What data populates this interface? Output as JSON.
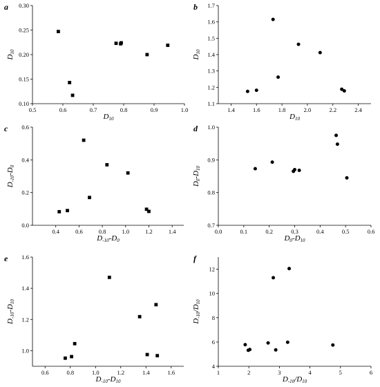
{
  "chart_data": [
    {
      "panel": "a",
      "type": "scatter",
      "marker": "square",
      "xlabel": {
        "main": "D",
        "sub": "10"
      },
      "ylabel": {
        "main": "D",
        "sub": "10"
      },
      "xlim": [
        0.5,
        1.0
      ],
      "ylim": [
        0.1,
        0.3
      ],
      "xticks": [
        "0.5",
        "0.6",
        "0.7",
        "0.8",
        "0.9",
        "1.0"
      ],
      "yticks": [
        "0.10",
        "0.15",
        "0.20",
        "0.25",
        "0.30"
      ],
      "points": [
        [
          0.585,
          0.247
        ],
        [
          0.622,
          0.143
        ],
        [
          0.632,
          0.117
        ],
        [
          0.775,
          0.223
        ],
        [
          0.79,
          0.222
        ],
        [
          0.792,
          0.224
        ],
        [
          0.877,
          0.2
        ],
        [
          0.945,
          0.219
        ]
      ]
    },
    {
      "panel": "b",
      "type": "scatter",
      "marker": "circle",
      "xlabel": {
        "main": "D",
        "sub": "10"
      },
      "ylabel": {
        "main": "D",
        "sub": "10"
      },
      "xlim": [
        1.3,
        2.5
      ],
      "ylim": [
        1.1,
        1.7
      ],
      "xticks": [
        "1.4",
        "1.6",
        "1.8",
        "2.0",
        "2.2",
        "2.4"
      ],
      "yticks": [
        "1.1",
        "1.2",
        "1.3",
        "1.4",
        "1.5",
        "1.6",
        "1.7"
      ],
      "points": [
        [
          1.53,
          1.175
        ],
        [
          1.6,
          1.182
        ],
        [
          1.73,
          1.615
        ],
        [
          1.77,
          1.262
        ],
        [
          1.93,
          1.463
        ],
        [
          2.1,
          1.412
        ],
        [
          2.27,
          1.188
        ],
        [
          2.29,
          1.178
        ]
      ]
    },
    {
      "panel": "c",
      "type": "scatter",
      "marker": "square",
      "xlabel": {
        "main": "D",
        "sub": "-10",
        "mid": "-D",
        "sub2": "0"
      },
      "ylabel": {
        "main": "D",
        "sub": "-10",
        "mid": "-D",
        "sub2": "0"
      },
      "xlim": [
        0.2,
        1.5
      ],
      "ylim": [
        0.0,
        0.6
      ],
      "xticks": [
        "0.4",
        "0.6",
        "0.8",
        "1.0",
        "1.2",
        "1.4"
      ],
      "yticks": [
        "0.0",
        "0.2",
        "0.4",
        "0.6"
      ],
      "points": [
        [
          0.43,
          0.083
        ],
        [
          0.5,
          0.09
        ],
        [
          0.64,
          0.52
        ],
        [
          0.69,
          0.17
        ],
        [
          0.84,
          0.37
        ],
        [
          1.02,
          0.32
        ],
        [
          1.18,
          0.098
        ],
        [
          1.2,
          0.085
        ]
      ]
    },
    {
      "panel": "d",
      "type": "scatter",
      "marker": "circle",
      "xlabel": {
        "main": "D",
        "sub": "0",
        "mid": "-D",
        "sub2": "10"
      },
      "ylabel": {
        "main": "D",
        "sub": "0",
        "mid": "-D",
        "sub2": "10"
      },
      "xlim": [
        0.0,
        0.6
      ],
      "ylim": [
        0.7,
        1.0
      ],
      "xticks": [
        "0.0",
        "0.1",
        "0.2",
        "0.3",
        "0.4",
        "0.5",
        "0.6"
      ],
      "yticks": [
        "0.7",
        "0.8",
        "0.9",
        "1.0"
      ],
      "points": [
        [
          0.145,
          0.873
        ],
        [
          0.212,
          0.893
        ],
        [
          0.295,
          0.865
        ],
        [
          0.3,
          0.87
        ],
        [
          0.318,
          0.868
        ],
        [
          0.463,
          0.975
        ],
        [
          0.468,
          0.948
        ],
        [
          0.505,
          0.845
        ]
      ]
    },
    {
      "panel": "e",
      "type": "scatter",
      "marker": "square",
      "xlabel": {
        "main": "D",
        "sub": "-10",
        "mid": "-D",
        "sub2": "10"
      },
      "ylabel": {
        "main": "D",
        "sub": "-10",
        "mid": "-D",
        "sub2": "10"
      },
      "xlim": [
        0.5,
        1.7
      ],
      "ylim": [
        0.9,
        1.6
      ],
      "xticks": [
        "0.6",
        "0.8",
        "1.0",
        "1.2",
        "1.4",
        "1.6"
      ],
      "yticks": [
        "1.0",
        "1.2",
        "1.4",
        "1.6"
      ],
      "points": [
        [
          0.76,
          0.952
        ],
        [
          0.81,
          0.962
        ],
        [
          0.835,
          1.045
        ],
        [
          1.11,
          1.47
        ],
        [
          1.35,
          1.218
        ],
        [
          1.41,
          0.975
        ],
        [
          1.48,
          1.295
        ],
        [
          1.49,
          0.968
        ]
      ]
    },
    {
      "panel": "f",
      "type": "scatter",
      "marker": "circle",
      "xlabel": {
        "main": "D",
        "sub": "-10",
        "mid": "/D",
        "sub2": "10"
      },
      "ylabel": {
        "main": "D",
        "sub": "-10",
        "mid": "/D",
        "sub2": "10"
      },
      "xlim": [
        1,
        6
      ],
      "ylim": [
        4,
        13
      ],
      "xticks": [
        "1",
        "2",
        "3",
        "4",
        "5",
        "6"
      ],
      "yticks": [
        "4",
        "6",
        "8",
        "10",
        "12"
      ],
      "points": [
        [
          1.88,
          5.78
        ],
        [
          1.98,
          5.32
        ],
        [
          2.03,
          5.38
        ],
        [
          2.63,
          5.92
        ],
        [
          2.8,
          11.3
        ],
        [
          2.88,
          5.35
        ],
        [
          3.27,
          5.98
        ],
        [
          3.32,
          12.05
        ],
        [
          4.75,
          5.75
        ]
      ]
    }
  ]
}
